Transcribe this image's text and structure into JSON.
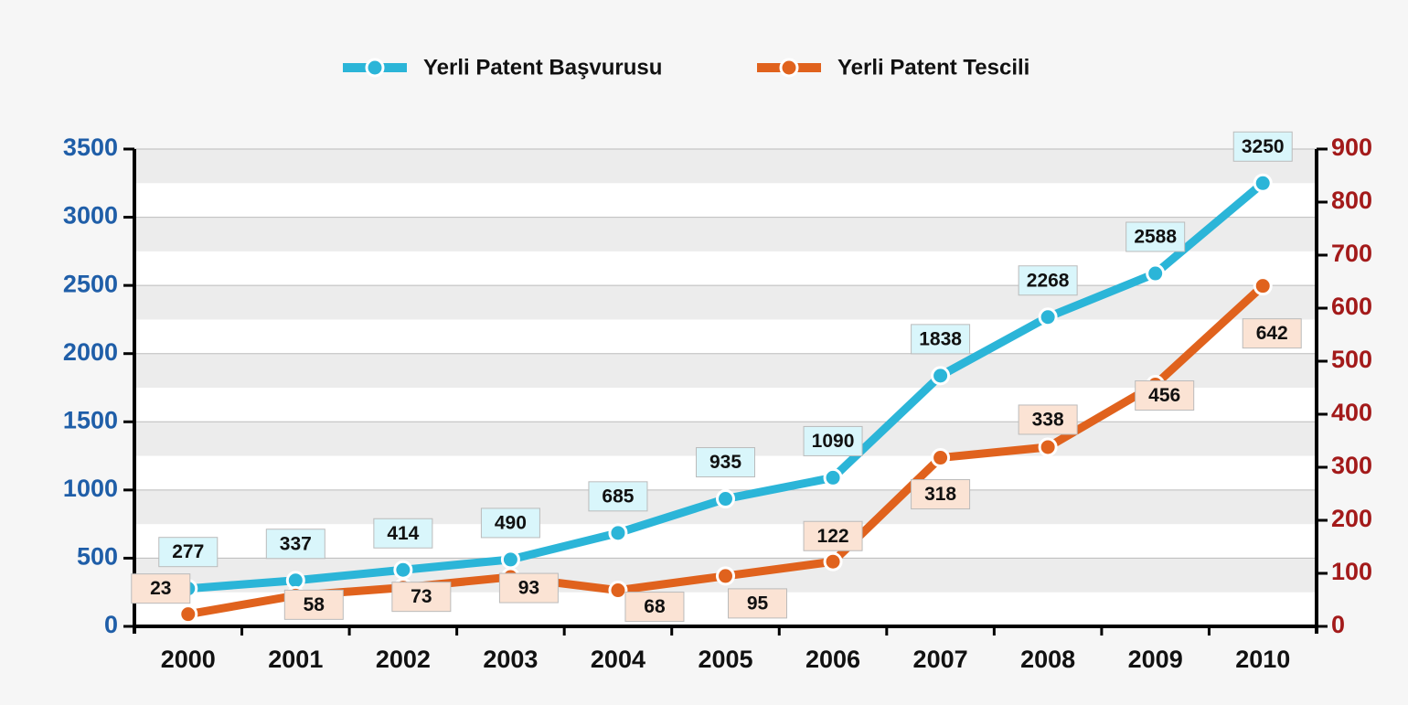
{
  "chart_data": {
    "type": "line",
    "categories": [
      "2000",
      "2001",
      "2002",
      "2003",
      "2004",
      "2005",
      "2006",
      "2007",
      "2008",
      "2009",
      "2010"
    ],
    "series": [
      {
        "name": "Yerli Patent Başvurusu",
        "color": "#2bb5d8",
        "values": [
          277,
          337,
          414,
          490,
          685,
          935,
          1090,
          1838,
          2268,
          2588,
          3250
        ]
      },
      {
        "name": "Yerli Patent Tescili",
        "color": "#e0621d",
        "axis": "y2",
        "values": [
          23,
          58,
          73,
          93,
          68,
          95,
          122,
          318,
          338,
          456,
          642
        ]
      }
    ],
    "ylim": [
      0,
      3500
    ],
    "yticks": [
      0,
      500,
      1000,
      1500,
      2000,
      2500,
      3000,
      3500
    ],
    "y2lim": [
      0,
      900
    ],
    "y2ticks": [
      0,
      100,
      200,
      300,
      400,
      500,
      600,
      700,
      800,
      900
    ],
    "grid": true,
    "legend": "top"
  }
}
